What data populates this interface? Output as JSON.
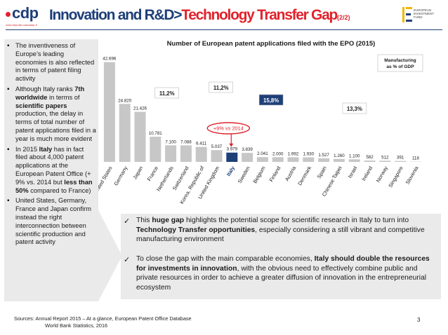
{
  "header": {
    "logo_text": "cdp",
    "logo_sub": "www.depositi.cassaddp.it",
    "title_part1": "Innovation and R&D",
    "title_sep": ">",
    "title_part2": "Technology Transfer Gap",
    "title_page": "(2/2)",
    "fund_text_1": "EUROPEAN",
    "fund_text_2": "INVESTMENT",
    "fund_text_3": "FUND"
  },
  "left_bullets": [
    {
      "segments": [
        {
          "t": "The inventiveness of Europe’s leading economies is also reflected in terms of patent filing activity",
          "b": false
        }
      ]
    },
    {
      "segments": [
        {
          "t": "Although Italy ranks ",
          "b": false
        },
        {
          "t": "7th worldwide",
          "b": true
        },
        {
          "t": " in terms of ",
          "b": false
        },
        {
          "t": "scientific papers",
          "b": true
        },
        {
          "t": " production, the delay in terms of total number of patent applications filed in a year is much more evident",
          "b": false
        }
      ]
    },
    {
      "segments": [
        {
          "t": "In 2015 ",
          "b": false
        },
        {
          "t": "Italy",
          "b": true
        },
        {
          "t": " has in fact filed about 4,000 patent applications  at the European Patent Office (+ 9% vs. 2014 but ",
          "b": false
        },
        {
          "t": "less than 50%",
          "b": true
        },
        {
          "t": " compared to France)",
          "b": false
        }
      ]
    },
    {
      "segments": [
        {
          "t": "United States, Germany, France and Japan confirm instead the right interconnection between scientific production and patent activity",
          "b": false
        }
      ]
    }
  ],
  "chart_data": {
    "type": "bar",
    "title": "Number of European patent applications filed with the EPO (2015)",
    "categories": [
      "United States",
      "Germany",
      "Japan",
      "France",
      "Netherlands",
      "Switzerland",
      "Korea, Republic of",
      "United Kingdom",
      "Italy",
      "Sweden",
      "Belgium",
      "Finland",
      "Austria",
      "Denmark",
      "Spain",
      "Chinese Taipei",
      "Israel",
      "Ireland",
      "Norway",
      "Singapore",
      "Slovenia"
    ],
    "values": [
      42696,
      24820,
      21426,
      10781,
      7100,
      7088,
      6411,
      5037,
      3979,
      3839,
      2041,
      2000,
      1992,
      1930,
      1527,
      1260,
      1100,
      582,
      512,
      391,
      118
    ],
    "value_labels": [
      "42.696",
      "24.820",
      "21.426",
      "10.781",
      "7.100",
      "7.088",
      "6.411",
      "5.037",
      "3.979",
      "3.839",
      "2.041",
      "2.000",
      "1.992",
      "1.930",
      "1.527",
      "1.260",
      "1.100",
      "582",
      "512",
      "391",
      "118"
    ],
    "highlight_category": "Italy",
    "colors": {
      "default": "#c7c7c7",
      "highlight": "#1e3f78",
      "share_light": "#ffffff",
      "share_dark": "#1e3f78",
      "ellipse": "#e0232c",
      "text": "#1a1a1a"
    },
    "share_callouts": [
      {
        "label": "11,2%",
        "style": "light",
        "category": "Germany"
      },
      {
        "label": "11,2%",
        "style": "light",
        "category": "Korea, Republic of"
      },
      {
        "label": "15,8%",
        "style": "dark",
        "category": "Sweden"
      },
      {
        "label": "13,3%",
        "style": "light",
        "category": "Chinese Taipei"
      }
    ],
    "manufacturing_note": [
      "Manufacturing",
      "as % of GDP"
    ],
    "annotation": "+9% vs 2014",
    "ylim": [
      0,
      45000
    ],
    "xlabel": "",
    "ylabel": ""
  },
  "points": [
    {
      "segments": [
        {
          "t": "This ",
          "b": false
        },
        {
          "t": "huge gap",
          "b": true
        },
        {
          "t": " highlights the potential scope for scientific research in Italy to turn into ",
          "b": false
        },
        {
          "t": "Technology Transfer opportunities",
          "b": true
        },
        {
          "t": ", especially considering a still vibrant and competitive manufacturing environment",
          "b": false
        }
      ]
    },
    {
      "segments": [
        {
          "t": "To close the gap with the main comparable economies, ",
          "b": false
        },
        {
          "t": "Italy should double the resources for investments in innovation",
          "b": true
        },
        {
          "t": ", with the obvious need to effectively combine public and private resources in order to achieve a greater diffusion of innovation in the entrepreneurial ecosystem",
          "b": false
        }
      ]
    }
  ],
  "check_mark": "✓",
  "footer": {
    "sources_1": "Sources: Annual Report 2015 – At a glance, European Patent Office Database",
    "sources_2": "World Bank Statistics, 2016",
    "page": "3"
  }
}
